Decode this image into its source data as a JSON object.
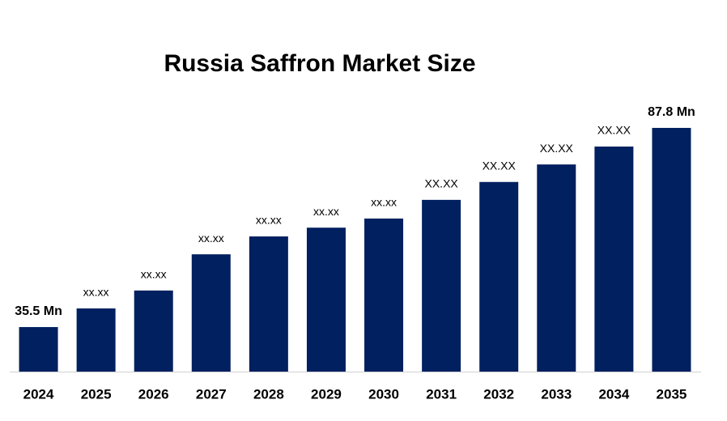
{
  "chart_data": {
    "type": "bar",
    "title": "Russia Saffron Market Size",
    "categories": [
      "2024",
      "2025",
      "2026",
      "2027",
      "2028",
      "2029",
      "2030",
      "2031",
      "2032",
      "2033",
      "2034",
      "2035"
    ],
    "values": [
      35.5,
      40.4,
      45.1,
      54.6,
      59.3,
      61.6,
      64.0,
      68.9,
      73.6,
      78.2,
      82.9,
      87.8
    ],
    "value_labels": [
      "35.5 Mn",
      "xx.xx",
      "xx.xx",
      "xx.xx",
      "xx.xx",
      "xx.xx",
      "xx.xx",
      "XX.XX",
      "XX.XX",
      "XX.XX",
      "XX.XX",
      "87.8 Mn"
    ],
    "color": "#002060",
    "ylim": [
      23.8,
      96
    ]
  }
}
